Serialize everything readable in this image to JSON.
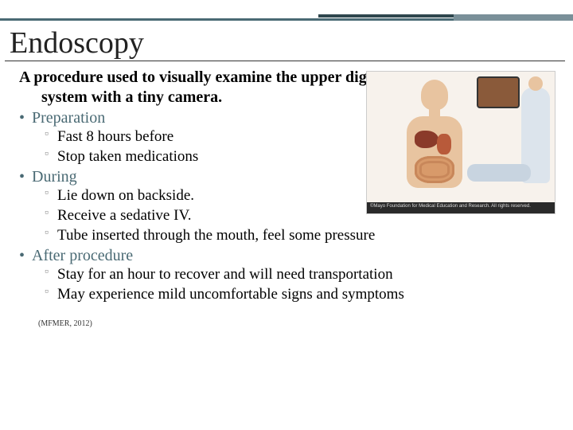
{
  "colors": {
    "accent": "#4a6a74",
    "accent_dark": "#2f474e",
    "accent_light": "#7a9099",
    "text": "#000000",
    "bullet_sub": "#888888",
    "background": "#ffffff"
  },
  "title": "Endoscopy",
  "intro_line1": "A procedure used to visually examine the upper digestive",
  "intro_line2": "system with a tiny camera.",
  "sections": [
    {
      "heading": "Preparation",
      "items": [
        "Fast 8 hours before",
        "Stop taken medications"
      ]
    },
    {
      "heading": "During",
      "items": [
        "Lie down on backside.",
        "Receive a sedative IV.",
        "Tube inserted through the mouth, feel some pressure"
      ]
    },
    {
      "heading": "After procedure",
      "items": [
        "Stay for an hour to recover and will need transportation",
        "May experience mild uncomfortable signs and symptoms"
      ]
    }
  ],
  "citation": "(MFMER, 2012)",
  "figure_caption": "©Mayo Foundation for Medical Education and Research. All rights reserved."
}
